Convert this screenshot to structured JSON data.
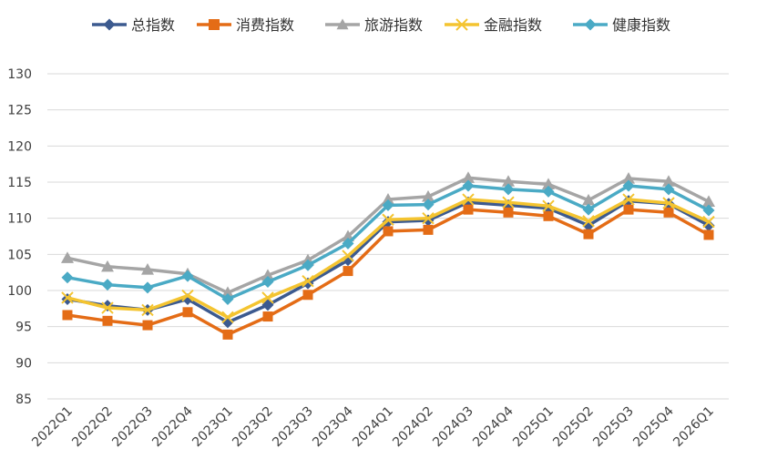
{
  "chart_data": {
    "type": "line",
    "title": "",
    "xlabel": "",
    "ylabel": "",
    "ylim": [
      85,
      130
    ],
    "yticks": [
      85,
      90,
      95,
      100,
      105,
      110,
      115,
      120,
      125,
      130
    ],
    "grid": true,
    "legend_position": "top",
    "categories": [
      "2022Q1",
      "2022Q2",
      "2022Q3",
      "2022Q4",
      "2023Q1",
      "2023Q2",
      "2023Q3",
      "2023Q4",
      "2024Q1",
      "2024Q2",
      "2024Q3",
      "2024Q4",
      "2025Q1",
      "2025Q2",
      "2025Q3",
      "2025Q4",
      "2026Q1"
    ],
    "series": [
      {
        "name": "总指数",
        "color": "#3c5a8f",
        "marker": "diamond",
        "values": [
          98.8,
          97.9,
          97.3,
          98.8,
          95.6,
          98.0,
          101.0,
          104.2,
          109.5,
          109.7,
          112.2,
          111.8,
          111.4,
          109.0,
          112.4,
          112.0,
          109.0
        ]
      },
      {
        "name": "消费指数",
        "color": "#e46c16",
        "marker": "square",
        "values": [
          96.6,
          95.8,
          95.2,
          97.0,
          93.9,
          96.4,
          99.4,
          102.7,
          108.2,
          108.4,
          111.2,
          110.8,
          110.3,
          107.8,
          111.2,
          110.8,
          107.7
        ]
      },
      {
        "name": "旅游指数",
        "color": "#a5a5a5",
        "marker": "triangle",
        "values": [
          104.5,
          103.3,
          102.9,
          102.3,
          99.7,
          102.1,
          104.2,
          107.5,
          112.6,
          113.0,
          115.6,
          115.1,
          114.7,
          112.5,
          115.5,
          115.1,
          112.3
        ]
      },
      {
        "name": "金融指数",
        "color": "#f4c430",
        "marker": "x",
        "values": [
          99.0,
          97.6,
          97.3,
          99.3,
          96.3,
          99.0,
          101.3,
          104.8,
          109.8,
          110.0,
          112.6,
          112.2,
          111.7,
          109.6,
          112.6,
          112.1,
          109.5
        ]
      },
      {
        "name": "健康指数",
        "color": "#4aaac5",
        "marker": "diamond",
        "values": [
          101.8,
          100.8,
          100.4,
          102.0,
          98.8,
          101.2,
          103.5,
          106.5,
          111.8,
          111.9,
          114.5,
          114.0,
          113.7,
          111.2,
          114.5,
          114.0,
          111.1
        ]
      }
    ]
  }
}
